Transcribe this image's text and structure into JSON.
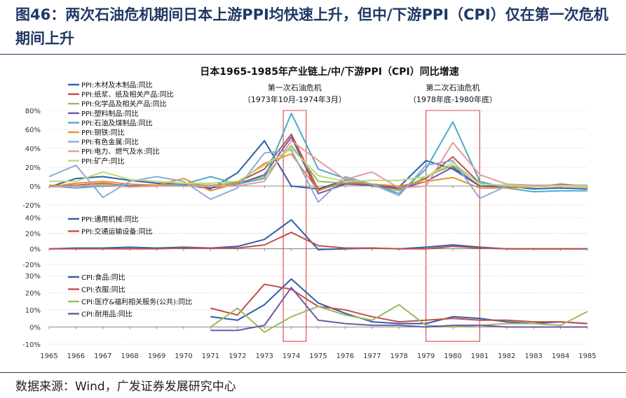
{
  "figure": {
    "title": "图46：两次石油危机期间日本上游PPI均快速上升，但中/下游PPI（CPI）仅在第一次危机期间上升",
    "source": "数据来源：Wind，广发证券发展研究中心"
  },
  "colors": {
    "blue": "#2e5fa8",
    "red": "#c0504d",
    "green": "#9bbb59",
    "purple": "#7356a5",
    "teal": "#4bacc6",
    "orange": "#e8902e",
    "lightblue": "#8ea9db",
    "pink": "#e39b9b",
    "lightgreen": "#b7dd7f",
    "box": "#d9534f",
    "grid": "#bbbbbb"
  },
  "chart_data": {
    "type": "line",
    "title": "日本1965-1985年产业链上/中/下游PPI（CPI）同比增速",
    "categories": [
      "1965",
      "1966",
      "1967",
      "1968",
      "1969",
      "1970",
      "1971",
      "1972",
      "1973",
      "1974",
      "1975",
      "1976",
      "1977",
      "1978",
      "1979",
      "1980",
      "1981",
      "1982",
      "1983",
      "1984",
      "1985"
    ],
    "annotations": [
      {
        "title": "第一次石油危机",
        "subtitle": "（1973年10月-1974年3月）",
        "x_start": 1973.7,
        "x_end": 1974.55
      },
      {
        "title": "第二次石油危机",
        "subtitle": "（1978年底-1980年底）",
        "x_start": 1979.0,
        "x_end": 1981.0
      }
    ],
    "panels": [
      {
        "name": "upstream",
        "ylim": [
          -20,
          80
        ],
        "ticks": [
          "80%",
          "60%",
          "40%",
          "20%",
          "0%",
          "-20%"
        ],
        "tick_values": [
          80,
          60,
          40,
          20,
          0,
          -20
        ],
        "series": [
          {
            "name": "PPI:木材及木制品:同比",
            "color": "blue",
            "values": [
              -1,
              8,
              10,
              6,
              3,
              2,
              -3,
              14,
              48,
              0,
              -3,
              6,
              2,
              -1,
              27,
              18,
              0,
              0,
              -3,
              -2,
              -3
            ]
          },
          {
            "name": "PPI:纸浆、纸及相关产品:同比",
            "color": "red",
            "values": [
              0,
              1,
              3,
              0,
              1,
              3,
              0,
              4,
              18,
              55,
              -4,
              3,
              2,
              -2,
              8,
              31,
              3,
              -1,
              -1,
              2,
              0
            ]
          },
          {
            "name": "PPI:化学品及相关产品:同比",
            "color": "green",
            "values": [
              1,
              0,
              2,
              0,
              1,
              2,
              1,
              3,
              10,
              43,
              5,
              3,
              0,
              -5,
              10,
              22,
              3,
              0,
              -1,
              0,
              0
            ]
          },
          {
            "name": "PPI:塑料制品:同比",
            "color": "purple",
            "values": [
              0,
              0,
              0,
              0,
              0,
              1,
              -2,
              2,
              12,
              52,
              -8,
              2,
              1,
              -3,
              5,
              20,
              0,
              -1,
              -1,
              0,
              0
            ]
          },
          {
            "name": "PPI:石油及煤制品:同比",
            "color": "teal",
            "values": [
              0,
              -2,
              0,
              2,
              0,
              2,
              10,
              2,
              8,
              77,
              18,
              8,
              2,
              -8,
              18,
              68,
              5,
              -2,
              -6,
              -5,
              -5
            ]
          },
          {
            "name": "PPI:钢铁:同比",
            "color": "orange",
            "values": [
              -1,
              3,
              5,
              2,
              1,
              8,
              -5,
              3,
              24,
              34,
              -5,
              5,
              2,
              0,
              5,
              9,
              -2,
              -2,
              -1,
              0,
              -1
            ]
          },
          {
            "name": "PPI:有色金属:同比",
            "color": "lightblue",
            "values": [
              10,
              22,
              -12,
              5,
              10,
              5,
              -14,
              -2,
              35,
              38,
              -17,
              10,
              2,
              -10,
              22,
              27,
              -13,
              0,
              0,
              1,
              1
            ]
          },
          {
            "name": "PPI:电力、燃气及水:同比",
            "color": "pink",
            "values": [
              -1,
              0,
              1,
              -1,
              0,
              0,
              0,
              0,
              5,
              48,
              27,
              7,
              15,
              -2,
              0,
              46,
              12,
              2,
              1,
              1,
              0
            ]
          },
          {
            "name": "PPI:矿产:同比",
            "color": "lightgreen",
            "values": [
              5,
              5,
              15,
              7,
              5,
              3,
              3,
              5,
              22,
              40,
              11,
              5,
              6,
              6,
              10,
              25,
              2,
              1,
              -1,
              0,
              0
            ]
          }
        ]
      },
      {
        "name": "midstream",
        "ylim": [
          -20,
          40
        ],
        "ticks": [
          "40%",
          "20%",
          "0%",
          "-20%"
        ],
        "tick_values": [
          40,
          20,
          0,
          -20
        ],
        "series": [
          {
            "name": "PPI:通用机械:同比",
            "color": "blue",
            "values": [
              0,
              1,
              1,
              2,
              1,
              2,
              1,
              3,
              12,
              37,
              -1,
              0,
              1,
              0,
              2,
              5,
              2,
              0,
              0,
              0,
              0
            ]
          },
          {
            "name": "PPI:交通运输设备:同比",
            "color": "red",
            "values": [
              0,
              0,
              0,
              0,
              0,
              1,
              1,
              1,
              5,
              21,
              4,
              1,
              1,
              0,
              0,
              3,
              1,
              0,
              0,
              0,
              0
            ]
          }
        ]
      },
      {
        "name": "downstream",
        "ylim": [
          -10,
          30
        ],
        "ticks": [
          "30%",
          "20%",
          "10%",
          "0%",
          "-10%"
        ],
        "tick_values": [
          30,
          20,
          10,
          0,
          -10
        ],
        "series": [
          {
            "name": "CPI:食品:同比",
            "color": "blue",
            "values": [
              null,
              null,
              null,
              null,
              null,
              null,
              6,
              4,
              13,
              28,
              14,
              8,
              3,
              2,
              2,
              6,
              5,
              3,
              2,
              3,
              2
            ]
          },
          {
            "name": "CPI:衣服:同比",
            "color": "red",
            "values": [
              null,
              null,
              null,
              null,
              null,
              null,
              11,
              7,
              25,
              22,
              12,
              10,
              6,
              3,
              4,
              5,
              4,
              4,
              3,
              3,
              2
            ]
          },
          {
            "name": "CPI:医疗&福利相关服务(公共):同比",
            "color": "green",
            "values": [
              null,
              null,
              null,
              null,
              null,
              null,
              0,
              11,
              -3,
              6,
              12,
              7,
              4,
              13,
              1,
              0,
              1,
              2,
              2,
              1,
              9
            ]
          },
          {
            "name": "CPI:耐用品:同比",
            "color": "purple",
            "values": [
              null,
              null,
              null,
              null,
              null,
              null,
              -2,
              -2,
              1,
              23,
              4,
              2,
              1,
              1,
              0,
              1,
              1,
              0,
              0,
              0,
              0
            ]
          }
        ]
      }
    ]
  }
}
